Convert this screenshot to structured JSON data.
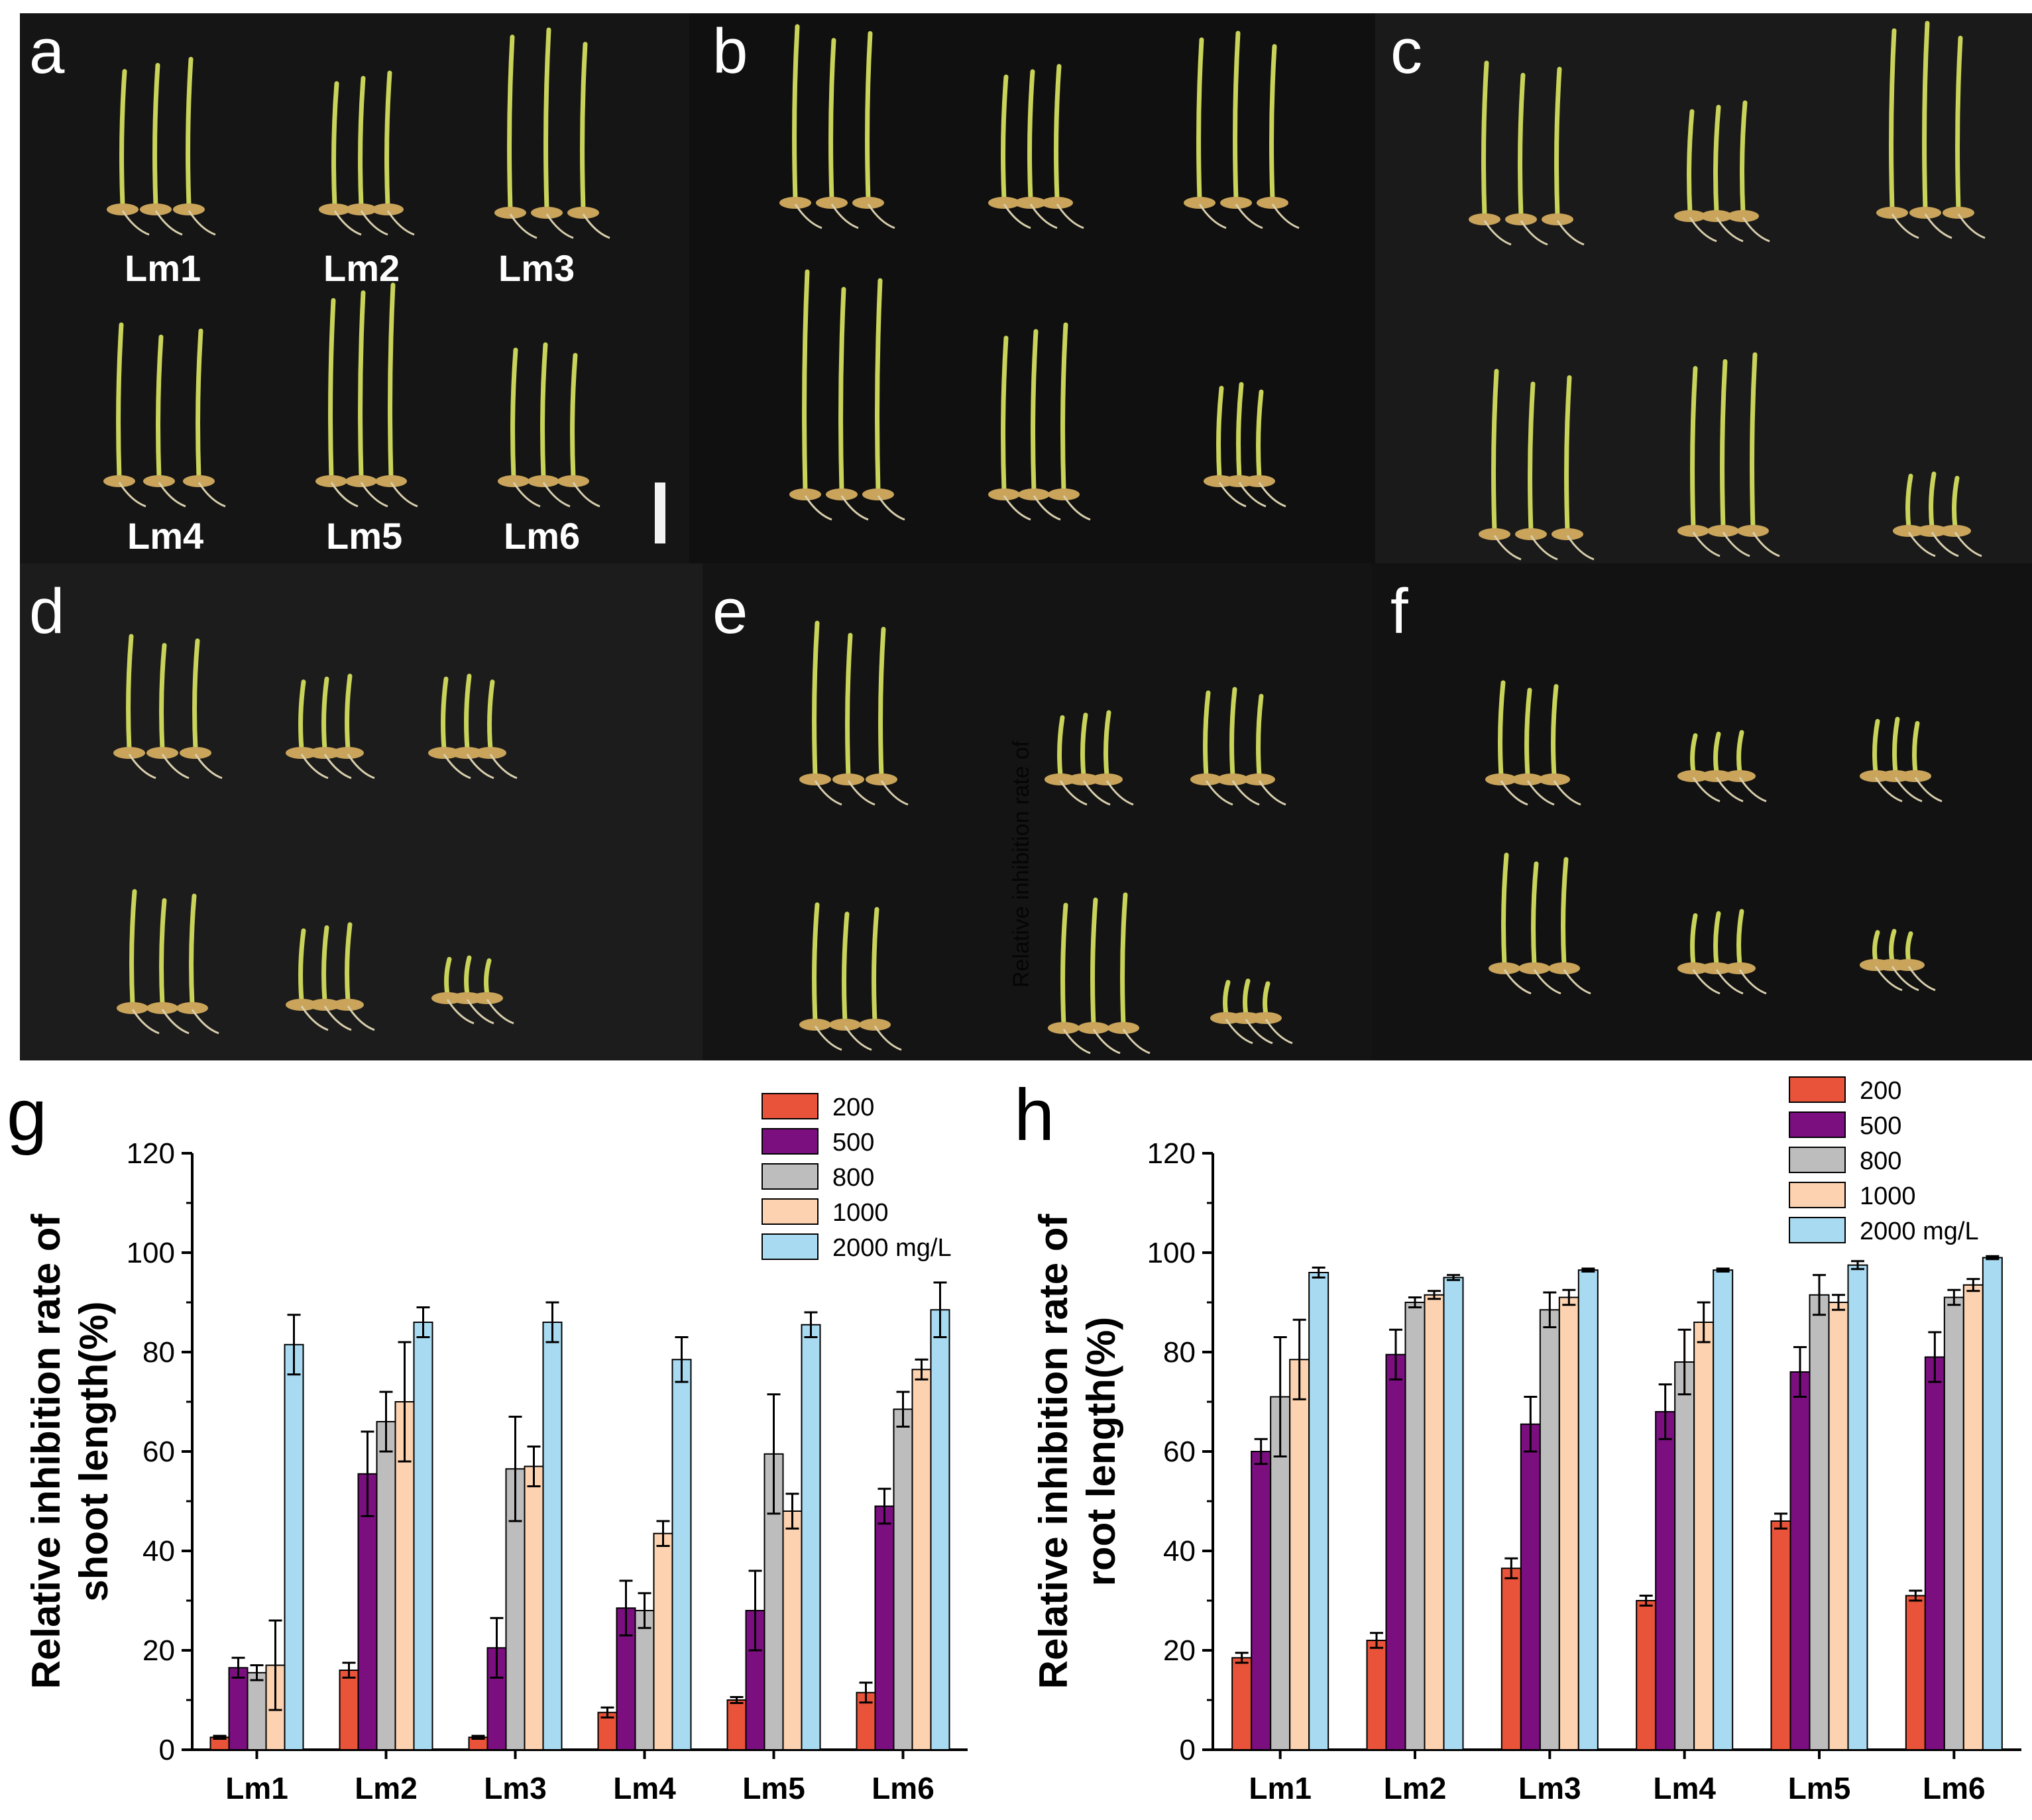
{
  "photos": {
    "panel_letters": [
      "a",
      "b",
      "c",
      "d",
      "e",
      "f"
    ],
    "panel_a_labels": [
      "Lm1",
      "Lm2",
      "Lm3",
      "Lm4",
      "Lm5",
      "Lm6"
    ],
    "overlay_text": "Relative inhibition rate of"
  },
  "legend": {
    "entries": [
      "200",
      "500",
      "800",
      "1000",
      "2000 mg/L"
    ]
  },
  "colors": {
    "s200": "#e8533a",
    "s500": "#7b0f80",
    "s800": "#bdbdbd",
    "s1000": "#fcd2b0",
    "s2000": "#a8dbf2",
    "photo_bg": "#121212",
    "seedling": "#c9d35a"
  },
  "chart_data": [
    {
      "type": "bar",
      "panel_letter": "g",
      "title": "",
      "ylabel_line1": "Relative inhibition rate of",
      "ylabel_line2": "shoot length(%)",
      "xlabel": "",
      "categories": [
        "Lm1",
        "Lm2",
        "Lm3",
        "Lm4",
        "Lm5",
        "Lm6"
      ],
      "ylim": [
        0,
        120
      ],
      "yticks": [
        "0",
        "20",
        "40",
        "60",
        "80",
        "100",
        "120"
      ],
      "series": [
        {
          "name": "200",
          "values": [
            2.5,
            16,
            2.5,
            7.5,
            10,
            11.5
          ],
          "errors": [
            0.3,
            1.5,
            0.3,
            1,
            0.6,
            2
          ]
        },
        {
          "name": "500",
          "values": [
            16.5,
            55.5,
            20.5,
            28.5,
            28,
            49
          ],
          "errors": [
            2,
            8.5,
            6,
            5.5,
            8,
            3.5
          ]
        },
        {
          "name": "800",
          "values": [
            15.5,
            66,
            56.5,
            28,
            59.5,
            68.5
          ],
          "errors": [
            1.5,
            6,
            10.5,
            3.5,
            12,
            3.5
          ]
        },
        {
          "name": "1000",
          "values": [
            17,
            70,
            57,
            43.5,
            48,
            76.5
          ],
          "errors": [
            9,
            12,
            4,
            2.5,
            3.5,
            2
          ]
        },
        {
          "name": "2000 mg/L",
          "values": [
            81.5,
            86,
            86,
            78.5,
            85.5,
            88.5
          ],
          "errors": [
            6,
            3,
            4,
            4.5,
            2.5,
            5.5
          ]
        }
      ]
    },
    {
      "type": "bar",
      "panel_letter": "h",
      "title": "",
      "ylabel_line1": "Relative inhibition rate of",
      "ylabel_line2": "root length(%)",
      "xlabel": "",
      "categories": [
        "Lm1",
        "Lm2",
        "Lm3",
        "Lm4",
        "Lm5",
        "Lm6"
      ],
      "ylim": [
        0,
        120
      ],
      "yticks": [
        "0",
        "20",
        "40",
        "60",
        "80",
        "100",
        "120"
      ],
      "series": [
        {
          "name": "200",
          "values": [
            18.5,
            22,
            36.5,
            30,
            46,
            31
          ],
          "errors": [
            1,
            1.5,
            2,
            1,
            1.5,
            1
          ]
        },
        {
          "name": "500",
          "values": [
            60,
            79.5,
            65.5,
            68,
            76,
            79
          ],
          "errors": [
            2.5,
            5,
            5.5,
            5.5,
            5,
            5
          ]
        },
        {
          "name": "800",
          "values": [
            71,
            90,
            88.5,
            78,
            91.5,
            91
          ],
          "errors": [
            12,
            1,
            3.5,
            6.5,
            4,
            1.5
          ]
        },
        {
          "name": "1000",
          "values": [
            78.5,
            91.5,
            91,
            86,
            90,
            93.5
          ],
          "errors": [
            8,
            0.8,
            1.5,
            4,
            1.5,
            1.2
          ]
        },
        {
          "name": "2000 mg/L",
          "values": [
            96,
            95,
            96.5,
            96.5,
            97.5,
            99
          ],
          "errors": [
            1,
            0.5,
            0.3,
            0.3,
            0.8,
            0.3
          ]
        }
      ]
    }
  ]
}
